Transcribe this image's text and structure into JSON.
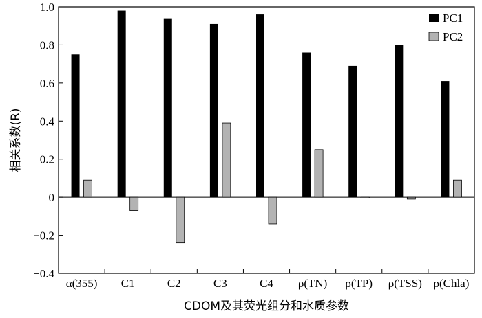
{
  "chart_data": {
    "type": "bar",
    "categories": [
      "α(355)",
      "C1",
      "C2",
      "C3",
      "C4",
      "ρ(TN)",
      "ρ(TP)",
      "ρ(TSS)",
      "ρ(Chla)"
    ],
    "series": [
      {
        "name": "PC1",
        "color": "#000000",
        "values": [
          0.75,
          0.98,
          0.94,
          0.91,
          0.96,
          0.76,
          0.69,
          0.8,
          0.61
        ]
      },
      {
        "name": "PC2",
        "color": "#b3b3b3",
        "values": [
          0.09,
          -0.07,
          -0.24,
          0.39,
          -0.14,
          0.25,
          -0.005,
          -0.01,
          0.09
        ]
      }
    ],
    "ylim": [
      -0.4,
      1.0
    ],
    "yticks": [
      "−0.4",
      "−0.2",
      "0",
      "0.2",
      "0.4",
      "0.6",
      "0.8",
      "1.0"
    ],
    "ytick_values": [
      -0.4,
      -0.2,
      0,
      0.2,
      0.4,
      0.6,
      0.8,
      1.0
    ],
    "xlabel": "CDOM及其荧光组分和水质参数",
    "ylabel": "相关系数(R)",
    "legend_position": "top-right",
    "grid": false
  }
}
